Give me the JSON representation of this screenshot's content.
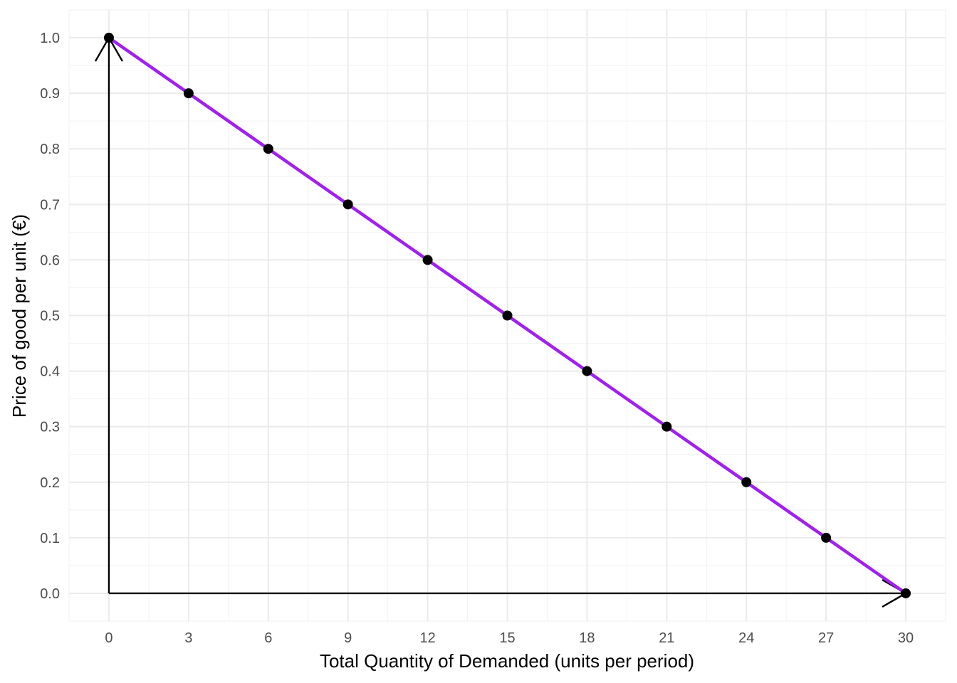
{
  "chart_data": {
    "type": "line",
    "xlabel": "Total Quantity of Demanded (units per period)",
    "ylabel": "Price of good per unit (€)",
    "xlim": [
      -1.5,
      31.5
    ],
    "ylim": [
      -0.05,
      1.05
    ],
    "x_ticks": [
      0,
      3,
      6,
      9,
      12,
      15,
      18,
      21,
      24,
      27,
      30
    ],
    "x_tick_labels": [
      "0",
      "3",
      "6",
      "9",
      "12",
      "15",
      "18",
      "21",
      "24",
      "27",
      "30"
    ],
    "y_ticks": [
      0.0,
      0.1,
      0.2,
      0.3,
      0.4,
      0.5,
      0.6,
      0.7,
      0.8,
      0.9,
      1.0
    ],
    "y_tick_labels": [
      "0.0",
      "0.1",
      "0.2",
      "0.3",
      "0.4",
      "0.5",
      "0.6",
      "0.7",
      "0.8",
      "0.9",
      "1.0"
    ],
    "grid": true,
    "legend": "none",
    "series": [
      {
        "x": [
          0,
          3,
          6,
          9,
          12,
          15,
          18,
          21,
          24,
          27,
          30
        ],
        "y": [
          1.0,
          0.9,
          0.8,
          0.7,
          0.6,
          0.5,
          0.4,
          0.3,
          0.2,
          0.1,
          0.0
        ],
        "line_color": "#a020f0",
        "point_color": "#000000"
      }
    ],
    "axis_arrows_color": "#000000"
  }
}
